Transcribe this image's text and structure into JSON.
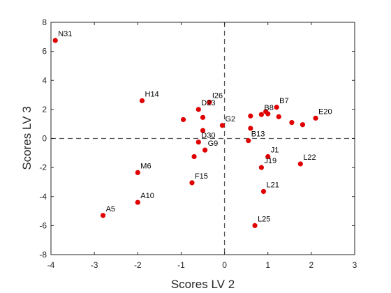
{
  "chart_data": {
    "type": "scatter",
    "title": "",
    "xlabel": "Scores LV 2",
    "ylabel": "Scores LV 3",
    "xlim": [
      -4,
      3
    ],
    "ylim": [
      -8,
      8
    ],
    "xticks": [
      -4,
      -3,
      -2,
      -1,
      0,
      1,
      2,
      3
    ],
    "yticks": [
      -8,
      -6,
      -4,
      -2,
      0,
      2,
      4,
      6,
      8
    ],
    "grid": false,
    "reference_lines": {
      "x": 0,
      "y": 0,
      "style": "dashed"
    },
    "marker_color": "#e00000",
    "points": [
      {
        "label": "N31",
        "x": -3.9,
        "y": 6.75
      },
      {
        "label": "H14",
        "x": -1.9,
        "y": 2.6
      },
      {
        "label": "I26",
        "x": -0.35,
        "y": 2.5
      },
      {
        "label": "D23",
        "x": -0.6,
        "y": 2.0
      },
      {
        "label": "",
        "x": -0.5,
        "y": 1.45
      },
      {
        "label": "",
        "x": -0.95,
        "y": 1.3
      },
      {
        "label": "G2",
        "x": -0.05,
        "y": 0.9
      },
      {
        "label": "",
        "x": -0.5,
        "y": 0.55
      },
      {
        "label": "D30",
        "x": -0.6,
        "y": -0.25
      },
      {
        "label": "G9",
        "x": -0.45,
        "y": -0.8
      },
      {
        "label": "",
        "x": -0.7,
        "y": -1.25
      },
      {
        "label": "B7",
        "x": 1.2,
        "y": 2.15
      },
      {
        "label": "B8",
        "x": 0.85,
        "y": 1.65
      },
      {
        "label": "",
        "x": 0.95,
        "y": 1.85
      },
      {
        "label": "",
        "x": 1.0,
        "y": 1.7
      },
      {
        "label": "",
        "x": 0.6,
        "y": 1.55
      },
      {
        "label": "",
        "x": 1.25,
        "y": 1.5
      },
      {
        "label": "",
        "x": 1.55,
        "y": 1.1
      },
      {
        "label": "",
        "x": 1.8,
        "y": 0.95
      },
      {
        "label": "E20",
        "x": 2.1,
        "y": 1.4
      },
      {
        "label": "",
        "x": 0.6,
        "y": 0.7
      },
      {
        "label": "B13",
        "x": 0.55,
        "y": -0.15
      },
      {
        "label": "J1",
        "x": 1.0,
        "y": -1.25
      },
      {
        "label": "J19",
        "x": 0.85,
        "y": -2.0
      },
      {
        "label": "L22",
        "x": 1.75,
        "y": -1.75
      },
      {
        "label": "M6",
        "x": -2.0,
        "y": -2.35
      },
      {
        "label": "F15",
        "x": -0.75,
        "y": -3.05
      },
      {
        "label": "L21",
        "x": 0.9,
        "y": -3.65
      },
      {
        "label": "A10",
        "x": -2.0,
        "y": -4.4
      },
      {
        "label": "A5",
        "x": -2.8,
        "y": -5.3
      },
      {
        "label": "L25",
        "x": 0.7,
        "y": -6.0
      }
    ]
  }
}
